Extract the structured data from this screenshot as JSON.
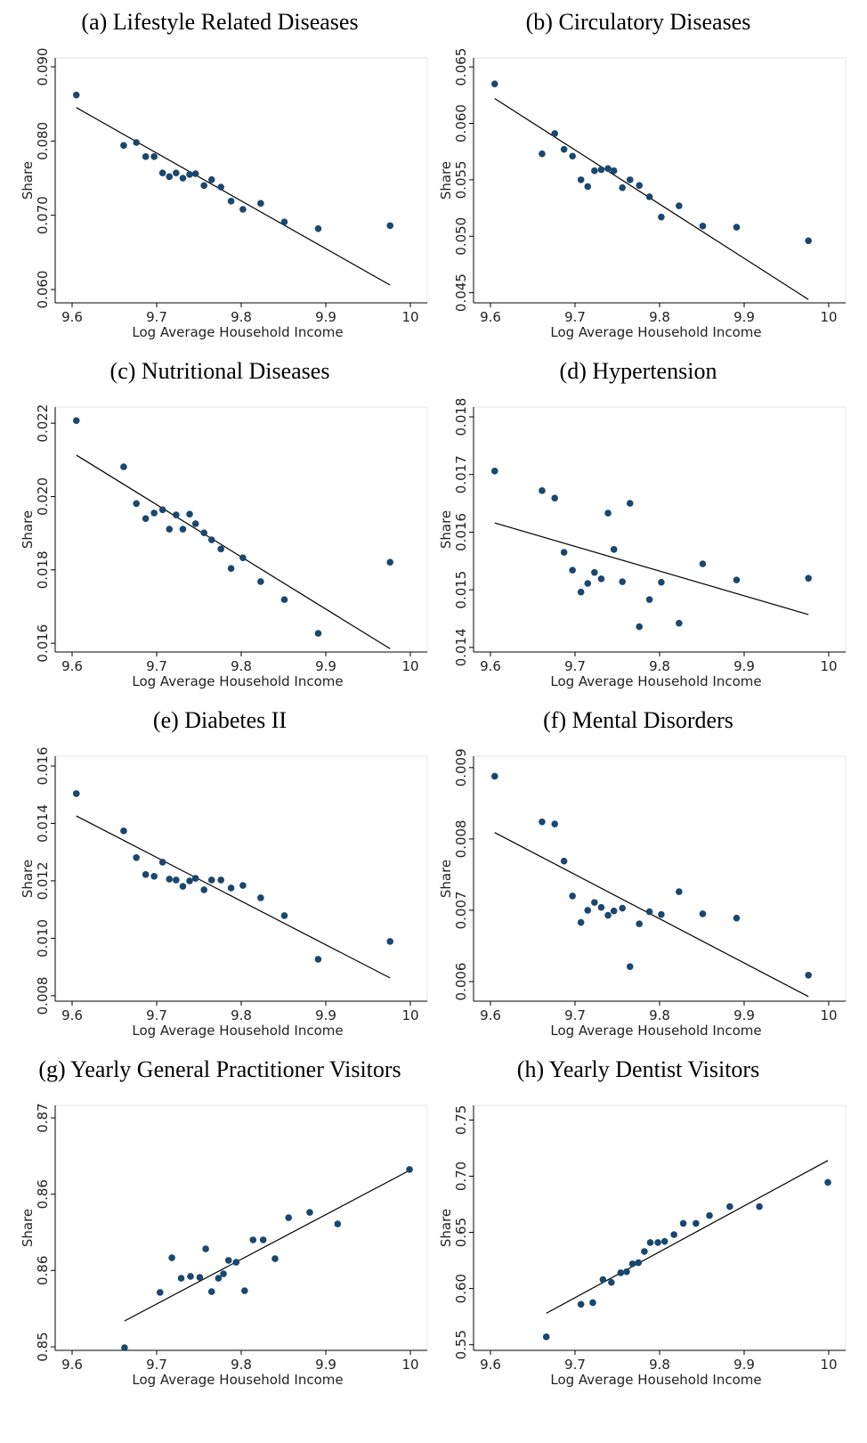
{
  "chart_data": [
    {
      "type": "scatter",
      "title": "(a) Lifestyle Related Diseases",
      "x_label": "Log Average Household Income",
      "y_label": "Share",
      "color": "#1a476f",
      "x": [
        9.605,
        9.661,
        9.676,
        9.687,
        9.697,
        9.707,
        9.715,
        9.723,
        9.731,
        9.739,
        9.746,
        9.756,
        9.765,
        9.776,
        9.788,
        9.802,
        9.823,
        9.851,
        9.891,
        9.976
      ],
      "y": [
        0.0862,
        0.0794,
        0.0798,
        0.0779,
        0.0779,
        0.0757,
        0.0752,
        0.0757,
        0.075,
        0.0755,
        0.0756,
        0.074,
        0.0748,
        0.0738,
        0.0719,
        0.0708,
        0.0716,
        0.0691,
        0.0682,
        0.0686
      ],
      "fit": {
        "x": [
          9.605,
          9.976
        ],
        "y": [
          0.0845,
          0.0606
        ]
      },
      "xlim": [
        9.58,
        10.02
      ],
      "ylim": [
        0.0582,
        0.0912
      ],
      "xticks": [
        9.6,
        9.7,
        9.8,
        9.9,
        10
      ],
      "yticks": [
        {
          "value": 0.06,
          "label": "0.060"
        },
        {
          "value": 0.07,
          "label": "0.070"
        },
        {
          "value": 0.08,
          "label": "0.080"
        },
        {
          "value": 0.09,
          "label": "0.090"
        }
      ]
    },
    {
      "type": "scatter",
      "title": "(b) Circulatory Diseases",
      "x_label": "Log Average Household Income",
      "y_label": "Share",
      "color": "#1a476f",
      "x": [
        9.605,
        9.661,
        9.676,
        9.687,
        9.697,
        9.707,
        9.715,
        9.723,
        9.731,
        9.739,
        9.746,
        9.756,
        9.765,
        9.776,
        9.788,
        9.802,
        9.823,
        9.851,
        9.891,
        9.976
      ],
      "y": [
        0.0635,
        0.0573,
        0.0591,
        0.0577,
        0.0571,
        0.055,
        0.0544,
        0.0558,
        0.0559,
        0.056,
        0.0558,
        0.0543,
        0.055,
        0.0545,
        0.0535,
        0.0517,
        0.0527,
        0.0509,
        0.0508,
        0.0496
      ],
      "fit": {
        "x": [
          9.605,
          9.976
        ],
        "y": [
          0.0622,
          0.0444
        ]
      },
      "xlim": [
        9.58,
        10.02
      ],
      "ylim": [
        0.0441,
        0.0658
      ],
      "xticks": [
        9.6,
        9.7,
        9.8,
        9.9,
        10
      ],
      "yticks": [
        0.045,
        {
          "value": 0.05,
          "label": "0.050"
        },
        0.055,
        {
          "value": 0.06,
          "label": "0.060"
        },
        0.065
      ]
    },
    {
      "type": "scatter",
      "title": "(c) Nutritional Diseases",
      "x_label": "Log Average Household Income",
      "y_label": "Share",
      "color": "#1a476f",
      "x": [
        9.605,
        9.661,
        9.676,
        9.687,
        9.697,
        9.707,
        9.715,
        9.723,
        9.731,
        9.739,
        9.746,
        9.756,
        9.765,
        9.776,
        9.788,
        9.802,
        9.823,
        9.851,
        9.891,
        9.976
      ],
      "y": [
        0.02207,
        0.02081,
        0.01981,
        0.0194,
        0.01955,
        0.01964,
        0.01911,
        0.0195,
        0.01911,
        0.01952,
        0.01926,
        0.01901,
        0.01882,
        0.01857,
        0.01804,
        0.01833,
        0.01768,
        0.01719,
        0.01627,
        0.01821
      ],
      "fit": {
        "x": [
          9.605,
          9.976
        ],
        "y": [
          0.02113,
          0.01585
        ]
      },
      "xlim": [
        9.58,
        10.02
      ],
      "ylim": [
        0.01576,
        0.02244
      ],
      "xticks": [
        9.6,
        9.7,
        9.8,
        9.9,
        10
      ],
      "yticks": [
        0.016,
        0.018,
        {
          "value": 0.02,
          "label": "0.020"
        },
        0.022
      ]
    },
    {
      "type": "scatter",
      "title": "(d) Hypertension",
      "x_label": "Log Average Household Income",
      "y_label": "Share",
      "color": "#1a476f",
      "x": [
        9.605,
        9.661,
        9.676,
        9.687,
        9.697,
        9.707,
        9.715,
        9.723,
        9.731,
        9.739,
        9.746,
        9.756,
        9.765,
        9.776,
        9.788,
        9.802,
        9.823,
        9.851,
        9.891,
        9.976
      ],
      "y": [
        0.01706,
        0.01672,
        0.01659,
        0.01565,
        0.01534,
        0.01496,
        0.01511,
        0.0153,
        0.01519,
        0.01633,
        0.0157,
        0.01514,
        0.0165,
        0.01436,
        0.01483,
        0.01513,
        0.01442,
        0.01545,
        0.01517,
        0.0152
      ],
      "fit": {
        "x": [
          9.605,
          9.976
        ],
        "y": [
          0.01616,
          0.01457
        ]
      },
      "xlim": [
        9.58,
        10.02
      ],
      "ylim": [
        0.01392,
        0.01817
      ],
      "xticks": [
        9.6,
        9.7,
        9.8,
        9.9,
        10
      ],
      "yticks": [
        0.014,
        0.015,
        {
          "value": 0.016,
          "label": "0.016"
        },
        0.017,
        0.018
      ]
    },
    {
      "type": "scatter",
      "title": "(e) Diabetes II",
      "x_label": "Log Average Household Income",
      "y_label": "Share",
      "color": "#1a476f",
      "x": [
        9.605,
        9.661,
        9.676,
        9.687,
        9.697,
        9.707,
        9.715,
        9.723,
        9.731,
        9.739,
        9.746,
        9.756,
        9.765,
        9.776,
        9.788,
        9.802,
        9.823,
        9.851,
        9.891,
        9.976
      ],
      "y": [
        0.01504,
        0.01374,
        0.01281,
        0.01222,
        0.01216,
        0.01265,
        0.01206,
        0.01203,
        0.01181,
        0.012,
        0.01209,
        0.01169,
        0.01203,
        0.01203,
        0.01175,
        0.01184,
        0.01141,
        0.01079,
        0.00927,
        0.00989
      ],
      "fit": {
        "x": [
          9.605,
          9.976
        ],
        "y": [
          0.01426,
          0.00862
        ]
      },
      "xlim": [
        9.58,
        10.02
      ],
      "ylim": [
        0.00781,
        0.01634
      ],
      "xticks": [
        9.6,
        9.7,
        9.8,
        9.9,
        10
      ],
      "yticks": [
        0.008,
        {
          "value": 0.01,
          "label": "0.010"
        },
        {
          "value": 0.012,
          "label": "0.012"
        },
        0.014,
        0.016
      ]
    },
    {
      "type": "scatter",
      "title": "(f) Mental Disorders",
      "x_label": "Log Average Household Income",
      "y_label": "Share",
      "color": "#1a476f",
      "x": [
        9.605,
        9.661,
        9.676,
        9.687,
        9.697,
        9.707,
        9.715,
        9.723,
        9.731,
        9.739,
        9.746,
        9.756,
        9.765,
        9.776,
        9.788,
        9.802,
        9.823,
        9.851,
        9.891,
        9.976
      ],
      "y": [
        0.00888,
        0.00824,
        0.00821,
        0.00769,
        0.0072,
        0.00683,
        0.007,
        0.00711,
        0.00704,
        0.00693,
        0.00699,
        0.00703,
        0.00621,
        0.00681,
        0.00698,
        0.00694,
        0.00726,
        0.00695,
        0.00689,
        0.00609
      ],
      "fit": {
        "x": [
          9.605,
          9.976
        ],
        "y": [
          0.00809,
          0.00579
        ]
      },
      "xlim": [
        9.58,
        10.02
      ],
      "ylim": [
        0.005725,
        0.00916
      ],
      "xticks": [
        9.6,
        9.7,
        9.8,
        9.9,
        10
      ],
      "yticks": [
        0.006,
        0.007,
        0.008,
        0.009
      ]
    },
    {
      "type": "scatter",
      "title": "(g) Yearly General Practitioner Visitors",
      "x_label": "Log Average Household Income",
      "y_label": "Share",
      "color": "#1a476f",
      "x": [
        9.662,
        9.704,
        9.718,
        9.729,
        9.74,
        9.751,
        9.758,
        9.765,
        9.773,
        9.779,
        9.785,
        9.794,
        9.804,
        9.814,
        9.826,
        9.84,
        9.856,
        9.881,
        9.914,
        9.999
      ],
      "y": [
        0.84992,
        0.85475,
        0.85778,
        0.85599,
        0.85615,
        0.85607,
        0.85856,
        0.85482,
        0.85599,
        0.85638,
        0.85755,
        0.85739,
        0.8549,
        0.85934,
        0.85934,
        0.8577,
        0.86128,
        0.86175,
        0.86074,
        0.86549
      ],
      "fit": {
        "x": [
          9.662,
          9.999
        ],
        "y": [
          0.85226,
          0.86541
        ]
      },
      "xlim": [
        9.58,
        10.02
      ],
      "ylim": [
        0.84969,
        0.87109
      ],
      "xticks": [
        9.6,
        9.7,
        9.8,
        9.9,
        10
      ],
      "yticks": [
        0.85,
        {
          "value": 0.85667,
          "label": "0.86"
        },
        {
          "value": 0.86333,
          "label": "0.86"
        },
        0.87
      ]
    },
    {
      "type": "scatter",
      "title": "(h) Yearly Dentist Visitors",
      "x_label": "Log Average Household Income",
      "y_label": "Share",
      "color": "#1a476f",
      "x": [
        9.666,
        9.707,
        9.721,
        9.733,
        9.743,
        9.754,
        9.761,
        9.768,
        9.775,
        9.782,
        9.789,
        9.798,
        9.806,
        9.817,
        9.828,
        9.843,
        9.859,
        9.883,
        9.918,
        9.999
      ],
      "y": [
        0.557,
        0.586,
        0.5875,
        0.608,
        0.6055,
        0.614,
        0.615,
        0.622,
        0.623,
        0.633,
        0.641,
        0.641,
        0.642,
        0.648,
        0.658,
        0.658,
        0.665,
        0.673,
        0.673,
        0.6945
      ],
      "fit": {
        "x": [
          9.666,
          9.999
        ],
        "y": [
          0.578,
          0.714
        ]
      },
      "xlim": [
        9.58,
        10.02
      ],
      "ylim": [
        0.545,
        0.763
      ],
      "xticks": [
        9.6,
        9.7,
        9.8,
        9.9,
        10
      ],
      "yticks": [
        0.55,
        {
          "value": 0.6,
          "label": "0.60"
        },
        0.65,
        {
          "value": 0.7,
          "label": "0.70"
        },
        0.75
      ]
    }
  ]
}
